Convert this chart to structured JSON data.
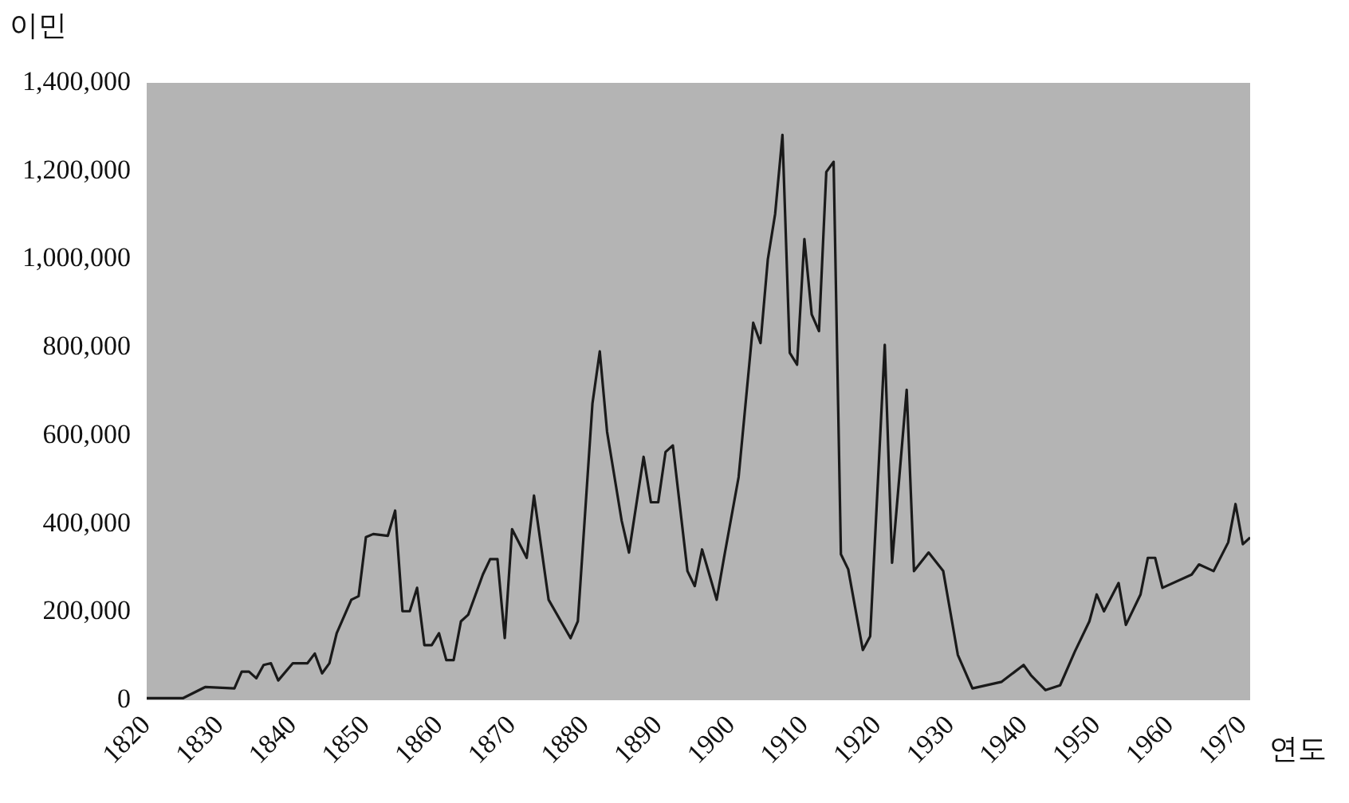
{
  "chart_data": {
    "type": "line",
    "xlabel": "연도",
    "ylabel": "이민",
    "x": [
      1820,
      1825,
      1828,
      1832,
      1833,
      1834,
      1835,
      1836,
      1837,
      1838,
      1840,
      1842,
      1843,
      1844,
      1845,
      1846,
      1848,
      1849,
      1850,
      1851,
      1853,
      1854,
      1855,
      1856,
      1857,
      1858,
      1859,
      1860,
      1861,
      1862,
      1863,
      1864,
      1866,
      1867,
      1868,
      1869,
      1870,
      1872,
      1873,
      1875,
      1878,
      1879,
      1881,
      1882,
      1883,
      1885,
      1886,
      1888,
      1889,
      1890,
      1891,
      1892,
      1894,
      1895,
      1896,
      1898,
      1899,
      1901,
      1903,
      1904,
      1905,
      1906,
      1907,
      1908,
      1909,
      1910,
      1911,
      1912,
      1913,
      1914,
      1915,
      1916,
      1918,
      1919,
      1921,
      1922,
      1924,
      1925,
      1927,
      1929,
      1931,
      1933,
      1937,
      1940,
      1941,
      1943,
      1945,
      1947,
      1949,
      1950,
      1951,
      1953,
      1954,
      1956,
      1957,
      1958,
      1959,
      1963,
      1964,
      1966,
      1968,
      1969,
      1970,
      1971
    ],
    "values": [
      5000,
      5000,
      30000,
      27000,
      65000,
      65000,
      50000,
      80000,
      84000,
      45000,
      84000,
      84000,
      106000,
      61000,
      84000,
      152000,
      228000,
      236000,
      370000,
      377000,
      373000,
      430000,
      202000,
      202000,
      255000,
      125000,
      125000,
      152000,
      91000,
      91000,
      179000,
      194000,
      285000,
      320000,
      320000,
      141000,
      388000,
      323000,
      464000,
      228000,
      141000,
      179000,
      673000,
      791000,
      609000,
      407000,
      335000,
      552000,
      449000,
      449000,
      563000,
      578000,
      293000,
      259000,
      342000,
      228000,
      323000,
      506000,
      856000,
      810000,
      1000000,
      1103000,
      1282000,
      788000,
      761000,
      1046000,
      875000,
      837000,
      1198000,
      1221000,
      331000,
      297000,
      114000,
      145000,
      806000,
      312000,
      704000,
      293000,
      335000,
      293000,
      103000,
      27000,
      42000,
      80000,
      57000,
      23000,
      34000,
      110000,
      179000,
      240000,
      202000,
      266000,
      171000,
      240000,
      323000,
      323000,
      255000,
      285000,
      308000,
      293000,
      358000,
      445000,
      354000,
      369000
    ],
    "color": "#1a1a1a",
    "xlim": [
      1820,
      1971
    ],
    "xticks": [
      1820,
      1830,
      1840,
      1850,
      1860,
      1870,
      1880,
      1890,
      1900,
      1910,
      1920,
      1930,
      1940,
      1950,
      1960,
      1970
    ],
    "ylim": [
      0,
      1400000
    ],
    "yticks": [
      {
        "value": 0,
        "label": "0"
      },
      {
        "value": 200000,
        "label": "200,000"
      },
      {
        "value": 400000,
        "label": "400,000"
      },
      {
        "value": 600000,
        "label": "600,000"
      },
      {
        "value": 800000,
        "label": "800,000"
      },
      {
        "value": 1000000,
        "label": "1,000,000"
      },
      {
        "value": 1200000,
        "label": "1,200,000"
      },
      {
        "value": 1400000,
        "label": "1,400,000"
      }
    ],
    "grid": false,
    "legend": false,
    "marker": "none",
    "line_style": "solid"
  }
}
